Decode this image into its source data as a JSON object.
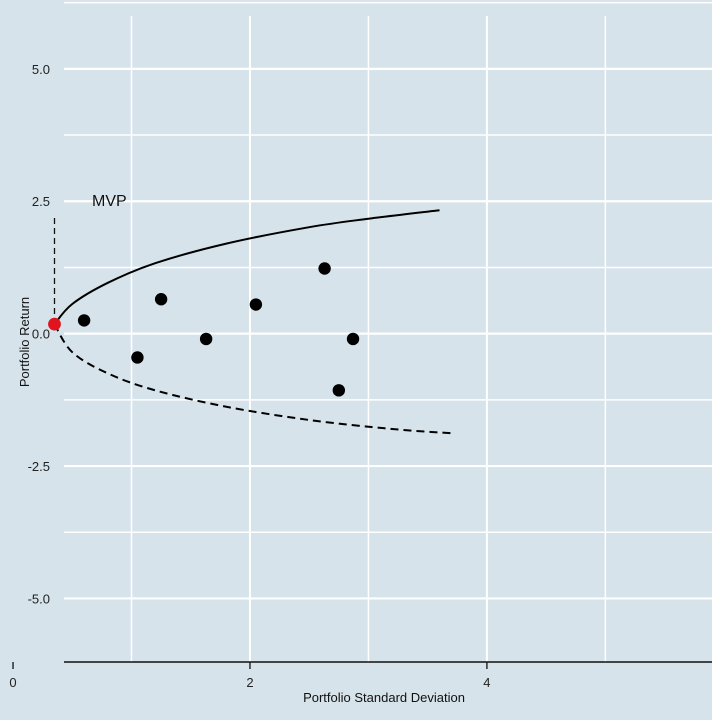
{
  "chart_data": {
    "type": "scatter",
    "xlabel": "Portfolio Standard Deviation",
    "ylabel": "Portfolio Return",
    "x_ticks": [
      {
        "value": 0,
        "label": "0"
      },
      {
        "value": 2,
        "label": "2"
      },
      {
        "value": 4,
        "label": "4"
      }
    ],
    "y_ticks": [
      {
        "value": 5,
        "label": "5.0"
      },
      {
        "value": 2.5,
        "label": "2.5"
      },
      {
        "value": 0,
        "label": "0.0"
      },
      {
        "value": -2.5,
        "label": "-2.5"
      },
      {
        "value": -5,
        "label": "-5.0"
      }
    ],
    "xlim": [
      -0.11,
      5.9
    ],
    "ylim": [
      -6.2,
      6.3
    ],
    "grid": true,
    "points": [
      {
        "x": 0.6,
        "y": 0.25
      },
      {
        "x": 1.05,
        "y": -0.45
      },
      {
        "x": 1.25,
        "y": 0.65
      },
      {
        "x": 1.63,
        "y": -0.1
      },
      {
        "x": 2.05,
        "y": 0.55
      },
      {
        "x": 2.63,
        "y": 1.23
      },
      {
        "x": 2.87,
        "y": -0.1
      },
      {
        "x": 2.75,
        "y": -1.07
      }
    ],
    "mvp": {
      "label": "MVP",
      "x": 0.35,
      "y": 0.18,
      "color": "#e0141e"
    },
    "efficient_frontier": {
      "style": "solid",
      "points": [
        [
          0.35,
          0.18
        ],
        [
          0.5,
          0.56
        ],
        [
          0.8,
          0.96
        ],
        [
          1.2,
          1.33
        ],
        [
          1.8,
          1.7
        ],
        [
          2.5,
          2.01
        ],
        [
          3.0,
          2.17
        ],
        [
          3.6,
          2.33
        ]
      ]
    },
    "inefficient_frontier": {
      "style": "dashed",
      "points": [
        [
          0.35,
          0.18
        ],
        [
          0.5,
          -0.35
        ],
        [
          0.8,
          -0.75
        ],
        [
          1.2,
          -1.07
        ],
        [
          1.8,
          -1.38
        ],
        [
          2.5,
          -1.63
        ],
        [
          3.2,
          -1.8
        ],
        [
          3.7,
          -1.88
        ]
      ]
    },
    "colors": {
      "background": "#d6e3ea",
      "grid": "#ffffff",
      "points": "#000000"
    }
  }
}
